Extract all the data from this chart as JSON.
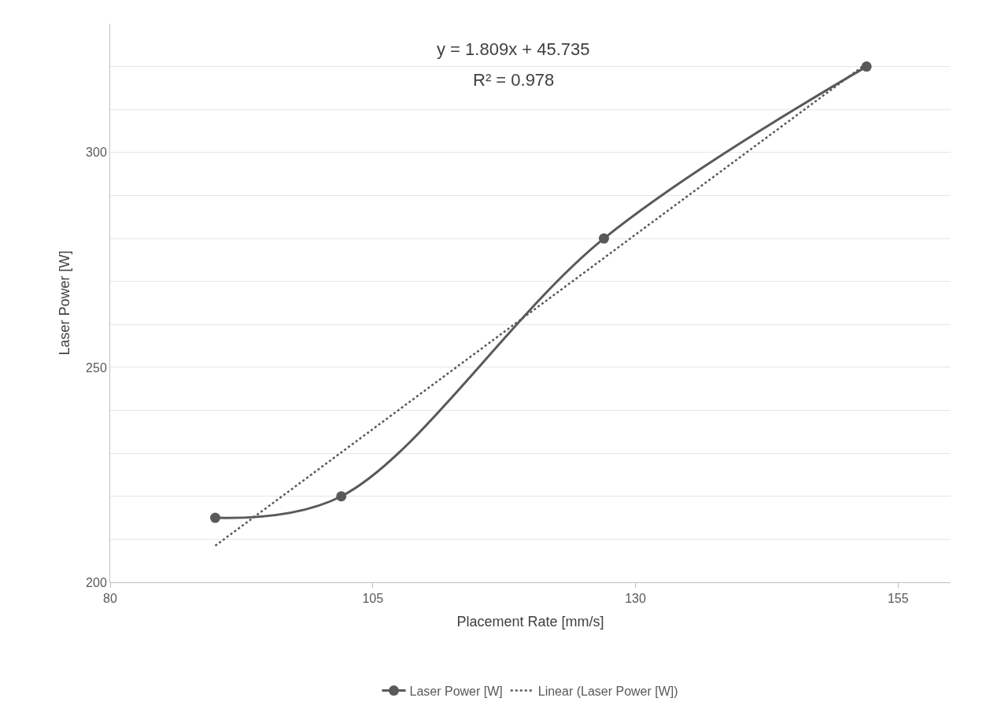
{
  "chart_data": {
    "type": "line",
    "xlabel": "Placement Rate [mm/s]",
    "ylabel": "Laser Power [W]",
    "xlim": [
      80,
      160
    ],
    "xticks": [
      80,
      105,
      130,
      155
    ],
    "ylim": [
      200,
      330
    ],
    "yticks": [
      200,
      {
        "value": 210,
        "label": null
      },
      {
        "value": 220,
        "label": null
      },
      {
        "value": 230,
        "label": null
      },
      {
        "value": 240,
        "label": null
      },
      250,
      {
        "value": 260,
        "label": null
      },
      {
        "value": 270,
        "label": null
      },
      {
        "value": 280,
        "label": null
      },
      {
        "value": 290,
        "label": null
      },
      300,
      {
        "value": 310,
        "label": null
      },
      {
        "value": 320,
        "label": null
      }
    ],
    "grid": "y",
    "legend": "bottom",
    "series": [
      {
        "name": "Laser Power [W]",
        "color": "#595959",
        "x": [
          90,
          102,
          127,
          152
        ],
        "values": [
          215,
          220,
          280,
          320
        ],
        "marker": "circle",
        "line_style": "solid"
      },
      {
        "name": "Linear (Laser Power [W])",
        "color": "#595959",
        "x": [
          90,
          152
        ],
        "values": [
          208.5,
          320.7
        ],
        "marker": "none",
        "line_style": "dotted"
      }
    ],
    "annotations": [
      "y = 1.809x + 45.735",
      "R² = 0.978"
    ]
  }
}
